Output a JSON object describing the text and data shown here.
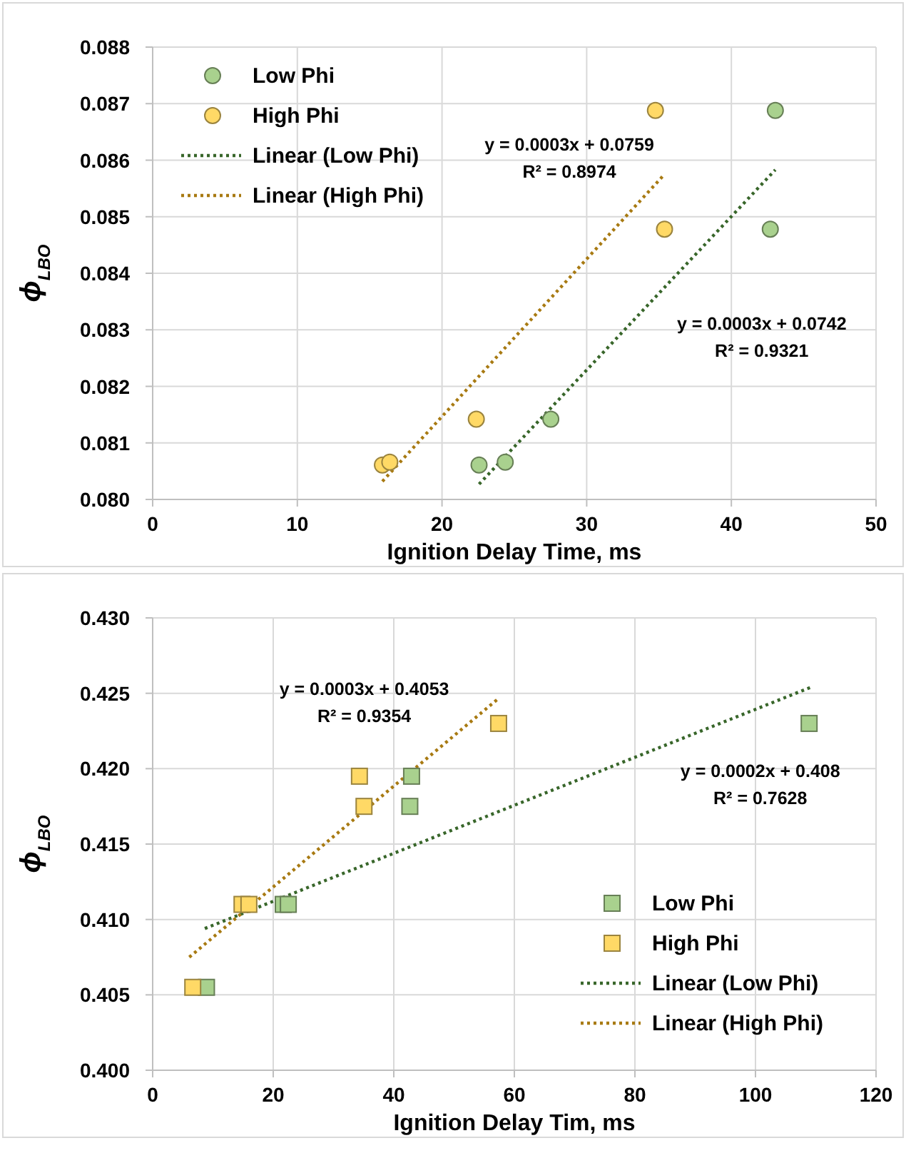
{
  "chart_data": [
    {
      "type": "scatter",
      "xlabel": "Ignition Delay Time, ms",
      "ylabel": "ϕ$_{LBO}$",
      "xlim": [
        0,
        50
      ],
      "xticks": [
        0,
        10,
        20,
        30,
        40,
        50
      ],
      "ylim": [
        0.08,
        0.088
      ],
      "yticks": [
        {
          "value": 0.08,
          "label": "0.080"
        },
        {
          "value": 0.081,
          "label": "0.081"
        },
        {
          "value": 0.082,
          "label": "0.082"
        },
        {
          "value": 0.083,
          "label": "0.083"
        },
        {
          "value": 0.084,
          "label": "0.084"
        },
        {
          "value": 0.085,
          "label": "0.085"
        },
        {
          "value": 0.086,
          "label": "0.086"
        },
        {
          "value": 0.087,
          "label": "0.087"
        },
        {
          "value": 0.088,
          "label": "0.088"
        }
      ],
      "grid": true,
      "legend": "top left",
      "series": [
        {
          "name": "Low Phi",
          "type": "scatter",
          "marker": "circle",
          "color": "#a9d18e",
          "x": [
            22.56,
            24.37,
            27.52,
            42.69,
            43.04
          ],
          "values": [
            0.08061,
            0.08066,
            0.08142,
            0.08478,
            0.08688
          ]
        },
        {
          "name": "High Phi",
          "type": "scatter",
          "marker": "circle",
          "color": "#ffd966",
          "x": [
            15.88,
            16.39,
            22.37,
            35.38,
            34.75
          ],
          "values": [
            0.08061,
            0.08066,
            0.08142,
            0.08478,
            0.08688
          ]
        },
        {
          "name": "Linear (Low Phi)",
          "type": "line",
          "marker": "none",
          "line_style": "dotted",
          "color": "#38662a",
          "x": [
            22.56,
            43.04
          ],
          "values": [
            0.08027,
            0.08583
          ]
        },
        {
          "name": "Linear (High Phi)",
          "type": "line",
          "marker": "none",
          "line_style": "dotted",
          "color": "#a87a12",
          "x": [
            15.88,
            35.38
          ],
          "values": [
            0.08032,
            0.08575
          ]
        }
      ],
      "annotations": [
        "y = 0.0003x + 0.0759",
        "R² = 0.8974",
        "y = 0.0003x + 0.0742",
        "R² = 0.9321"
      ]
    },
    {
      "type": "scatter",
      "xlabel": "Ignition Delay Tim, ms",
      "ylabel": "ϕ$_{LBO}$",
      "xlim": [
        0,
        120
      ],
      "xticks": [
        0,
        20,
        40,
        60,
        80,
        100,
        120
      ],
      "ylim": [
        0.4,
        0.43
      ],
      "yticks": [
        {
          "value": 0.4,
          "label": "0.400"
        },
        {
          "value": 0.405,
          "label": "0.405"
        },
        {
          "value": 0.41,
          "label": "0.410"
        },
        {
          "value": 0.415,
          "label": "0.415"
        },
        {
          "value": 0.42,
          "label": "0.420"
        },
        {
          "value": 0.425,
          "label": "0.425"
        },
        {
          "value": 0.43,
          "label": "0.430"
        }
      ],
      "grid": true,
      "legend": "bottom right",
      "series": [
        {
          "name": "Low Phi",
          "type": "scatter",
          "marker": "square",
          "color": "#a9d18e",
          "x": [
            8.93,
            21.66,
            22.5,
            42.66,
            42.95,
            108.9
          ],
          "values": [
            0.4055,
            0.411,
            0.411,
            0.4175,
            0.4195,
            0.423
          ]
        },
        {
          "name": "High Phi",
          "type": "scatter",
          "marker": "square",
          "color": "#ffd966",
          "x": [
            6.65,
            14.82,
            15.96,
            35.06,
            34.3,
            57.39
          ],
          "values": [
            0.4055,
            0.411,
            0.411,
            0.4175,
            0.4195,
            0.423
          ]
        },
        {
          "name": "Linear (Low Phi)",
          "type": "line",
          "marker": "none",
          "line_style": "dotted",
          "color": "#38662a",
          "x": [
            8.65,
            109.2
          ],
          "values": [
            0.4094,
            0.4254
          ]
        },
        {
          "name": "Linear (High Phi)",
          "type": "line",
          "marker": "none",
          "line_style": "dotted",
          "color": "#a87a12",
          "x": [
            6.08,
            57.2
          ],
          "values": [
            0.4075,
            0.4246
          ]
        }
      ],
      "annotations": [
        "y = 0.0003x + 0.4053",
        "R² = 0.9354",
        "y = 0.0002x + 0.408",
        "R² = 0.7628"
      ]
    }
  ]
}
